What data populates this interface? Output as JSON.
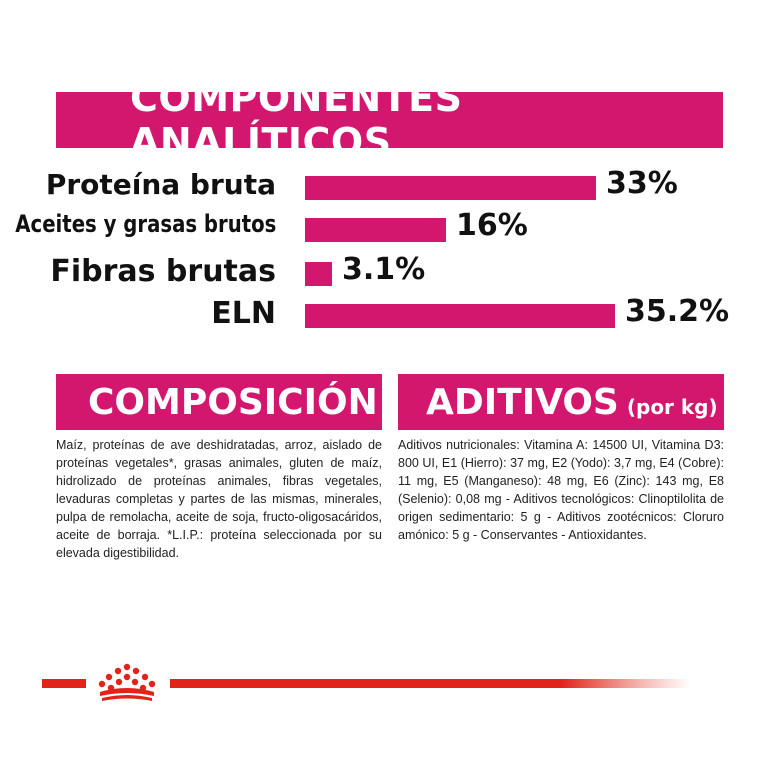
{
  "analytics": {
    "title": "COMPONENTES ANALÍTICOS"
  },
  "chart_data": {
    "type": "bar",
    "orientation": "horizontal",
    "categories": [
      "Proteína bruta",
      "Aceites y grasas brutos",
      "Fibras brutas",
      "ELN"
    ],
    "values": [
      33,
      16,
      3.1,
      35.2
    ],
    "value_labels": [
      "33%",
      "16%",
      "3.1%",
      "35.2%"
    ],
    "unit": "%",
    "xlim": [
      0,
      35.2
    ],
    "grid": false,
    "legend": "none",
    "colors": {
      "bar": "#d3176f"
    }
  },
  "composition": {
    "title": "COMPOSICIÓN",
    "text": "Maíz, proteínas de ave deshidratadas, arroz, aislado de proteínas vegetales*, grasas animales, gluten de maíz, hidrolizado de proteínas animales, fibras vegetales, levaduras completas y partes de las mismas, minerales, pulpa de remolacha, aceite de soja, fructo-oligosacáridos, aceite de borraja. *L.I.P.: proteína seleccionada por su elevada digestibilidad."
  },
  "additives": {
    "title": "ADITIVOS",
    "title_suffix": "(por kg)",
    "text": "Aditivos nutricionales: Vitamina A: 14500 UI, Vitamina D3: 800 UI, E1 (Hierro): 37 mg, E2 (Yodo): 3,7 mg, E4 (Cobre): 11 mg, E5 (Manganeso): 48 mg, E6 (Zinc): 143 mg, E8 (Selenio): 0,08 mg - Aditivos tecnológicos: Clinoptilolita de origen sedimentario: 5 g - Aditivos zootécnicos: Cloruro amónico: 5 g - Conservantes - Antioxidantes."
  },
  "footer": {
    "logo_icon": "royal-canin-crown-icon",
    "line_color": "#e2231a"
  }
}
